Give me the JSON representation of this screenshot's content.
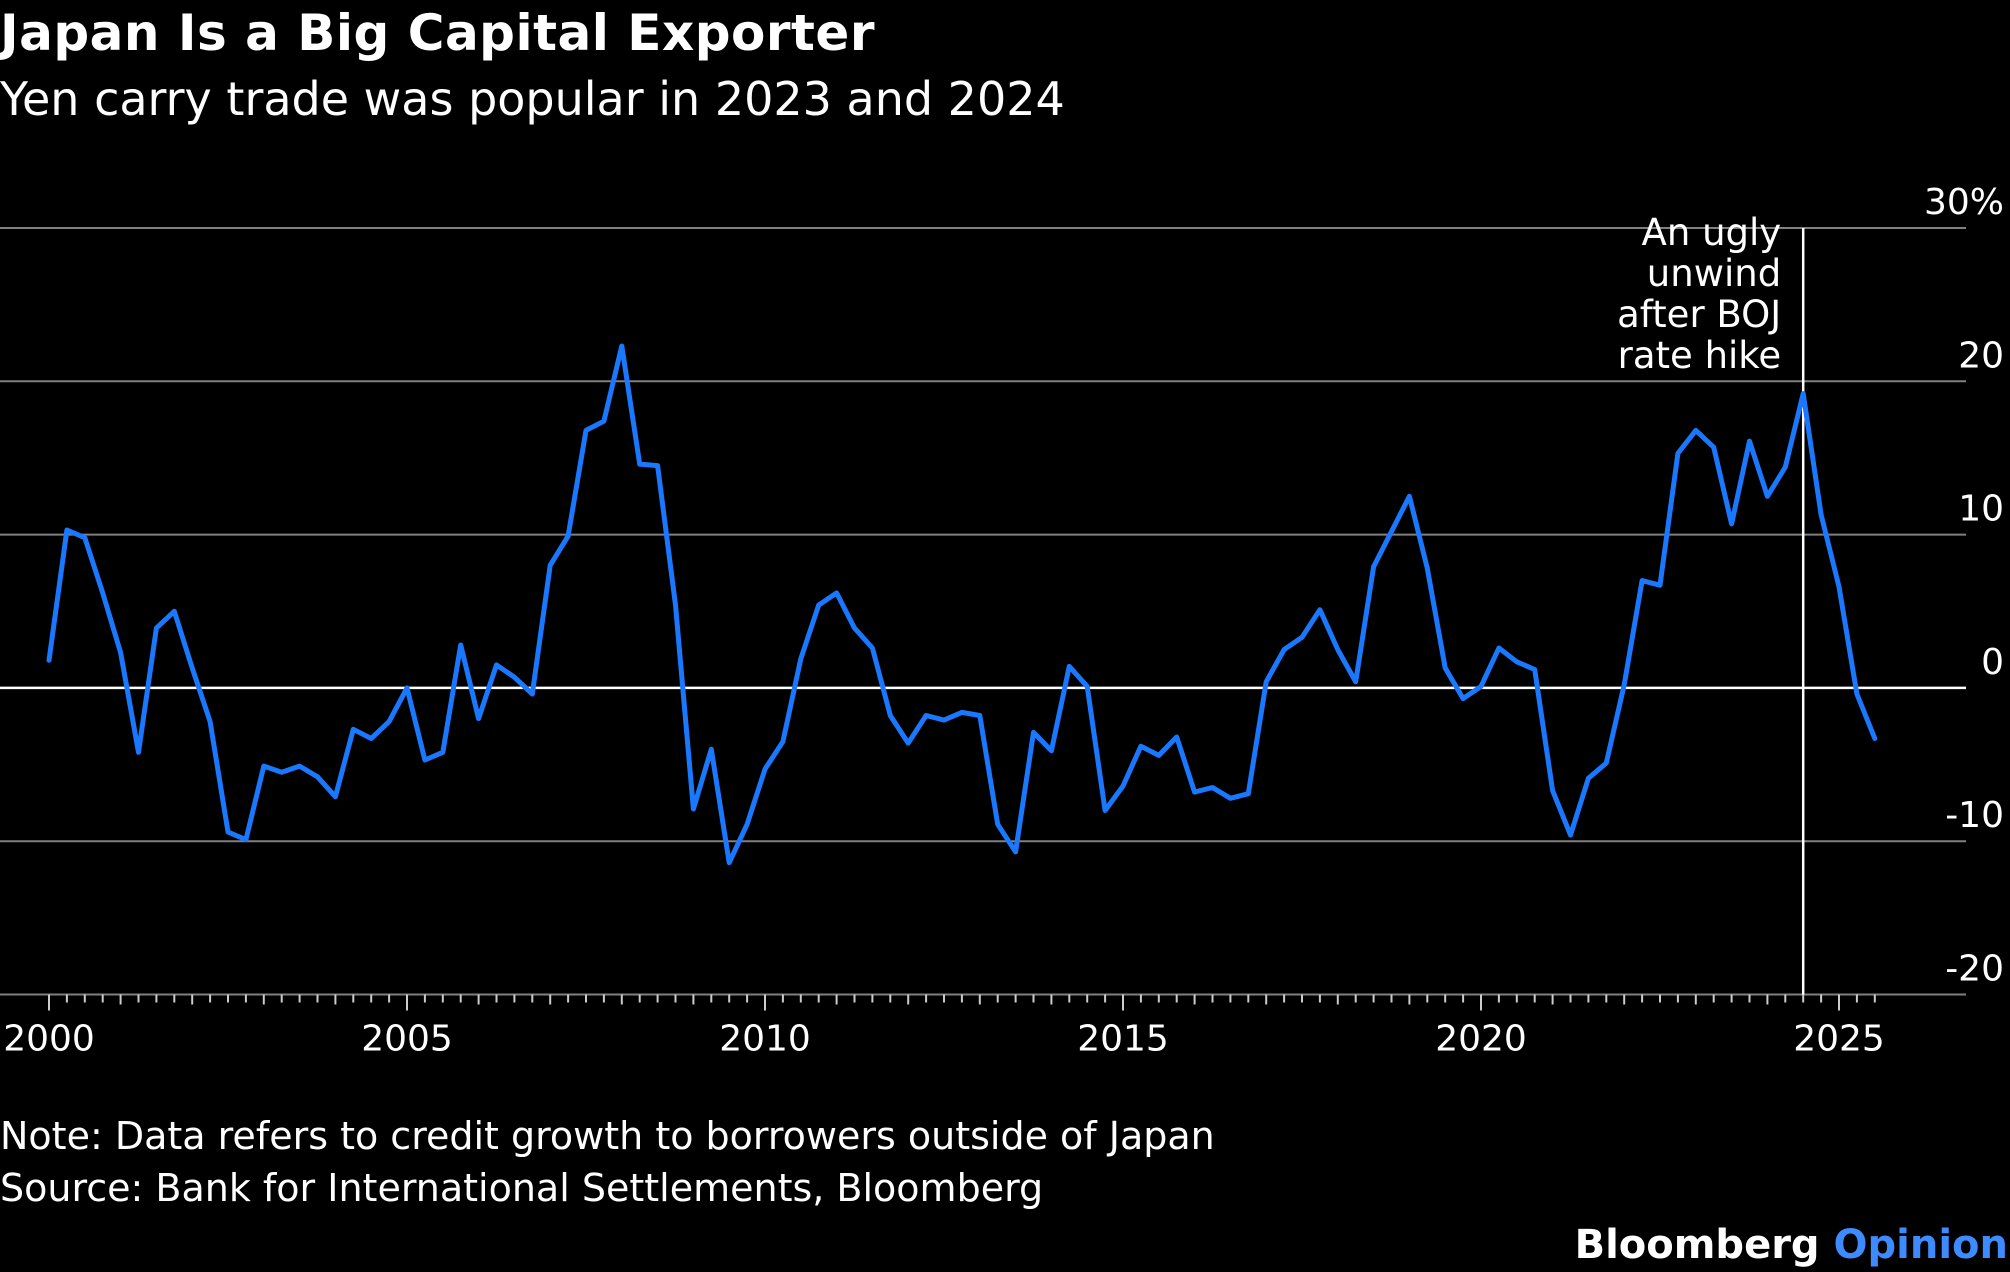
{
  "title": "Japan Is a Big Capital Exporter",
  "subtitle": "Yen carry trade was popular in 2023 and 2024",
  "note": "Note: Data refers to credit growth to borrowers outside of Japan",
  "source": "Source: Bank for International Settlements, Bloomberg",
  "brand": {
    "name": "Bloomberg",
    "tag": "Opinion"
  },
  "colors": {
    "background": "#000000",
    "line": "#1a78ff",
    "grid": "#808080",
    "zero_line": "#ffffff",
    "brand_accent": "#3d8bff"
  },
  "chart_data": {
    "type": "line",
    "title": "Japan Is a Big Capital Exporter",
    "subtitle": "Yen carry trade was popular in 2023 and 2024",
    "xlabel": "",
    "ylabel": "",
    "xlim": [
      2000,
      2026.2
    ],
    "ylim": [
      -20,
      30
    ],
    "y_ticks": [
      30,
      20,
      10,
      0,
      -10,
      -20
    ],
    "y_tick_labels": [
      "30%",
      "20",
      "10",
      "0",
      "-10",
      "-20"
    ],
    "x_ticks": [
      2000,
      2005,
      2010,
      2015,
      2020,
      2025
    ],
    "x_tick_labels": [
      "2000",
      "2005",
      "2010",
      "2015",
      "2020",
      "2025"
    ],
    "grid": true,
    "annotation": {
      "x": 2024.5,
      "text": [
        "An ugly",
        "unwind",
        "after BOJ",
        "rate hike"
      ]
    },
    "series": [
      {
        "x": [
          2000.0,
          2000.25,
          2000.5,
          2000.75,
          2001.0,
          2001.25,
          2001.5,
          2001.75,
          2002.0,
          2002.25,
          2002.5,
          2002.75,
          2003.0,
          2003.25,
          2003.5,
          2003.75,
          2004.0,
          2004.25,
          2004.5,
          2004.75,
          2005.0,
          2005.25,
          2005.5,
          2005.75,
          2006.0,
          2006.25,
          2006.5,
          2006.75,
          2007.0,
          2007.25,
          2007.5,
          2007.75,
          2008.0,
          2008.25,
          2008.5,
          2008.75,
          2009.0,
          2009.25,
          2009.5,
          2009.75,
          2010.0,
          2010.25,
          2010.5,
          2010.75,
          2011.0,
          2011.25,
          2011.5,
          2011.75,
          2012.0,
          2012.25,
          2012.5,
          2012.75,
          2013.0,
          2013.25,
          2013.5,
          2013.75,
          2014.0,
          2014.25,
          2014.5,
          2014.75,
          2015.0,
          2015.25,
          2015.5,
          2015.75,
          2016.0,
          2016.25,
          2016.5,
          2016.75,
          2017.0,
          2017.25,
          2017.5,
          2017.75,
          2018.0,
          2018.25,
          2018.5,
          2018.75,
          2019.0,
          2019.25,
          2019.5,
          2019.75,
          2020.0,
          2020.25,
          2020.5,
          2020.75,
          2021.0,
          2021.25,
          2021.5,
          2021.75,
          2022.0,
          2022.25,
          2022.5,
          2022.75,
          2023.0,
          2023.25,
          2023.5,
          2023.75,
          2024.0,
          2024.25,
          2024.5,
          2024.75,
          2025.0,
          2025.25,
          2025.5
        ],
        "y": [
          1.8,
          10.3,
          9.8,
          6.2,
          2.3,
          -4.2,
          3.9,
          5.0,
          1.3,
          -2.2,
          -9.4,
          -9.9,
          -5.1,
          -5.5,
          -5.1,
          -5.8,
          -7.1,
          -2.7,
          -3.3,
          -2.2,
          0.0,
          -4.7,
          -4.2,
          2.8,
          -2.0,
          1.5,
          0.7,
          -0.4,
          8.0,
          9.9,
          16.8,
          17.4,
          22.3,
          14.6,
          14.5,
          5.4,
          -7.9,
          -4.0,
          -11.4,
          -8.9,
          -5.3,
          -3.5,
          1.9,
          5.4,
          6.2,
          3.9,
          2.6,
          -1.8,
          -3.6,
          -1.8,
          -2.1,
          -1.6,
          -1.8,
          -8.9,
          -10.7,
          -2.9,
          -4.1,
          1.4,
          0.1,
          -8.0,
          -6.4,
          -3.8,
          -4.4,
          -3.2,
          -6.8,
          -6.5,
          -7.2,
          -6.9,
          0.4,
          2.5,
          3.3,
          5.1,
          2.5,
          0.4,
          7.9,
          10.2,
          12.5,
          7.8,
          1.3,
          -0.7,
          0.1,
          2.6,
          1.7,
          1.2,
          -6.7,
          -9.6,
          -5.9,
          -4.9,
          0.2,
          7.0,
          6.7,
          15.3,
          16.8,
          15.7,
          10.7,
          16.1,
          12.5,
          14.4,
          19.2,
          11.3,
          6.6,
          -0.4,
          -3.3
        ]
      }
    ]
  }
}
